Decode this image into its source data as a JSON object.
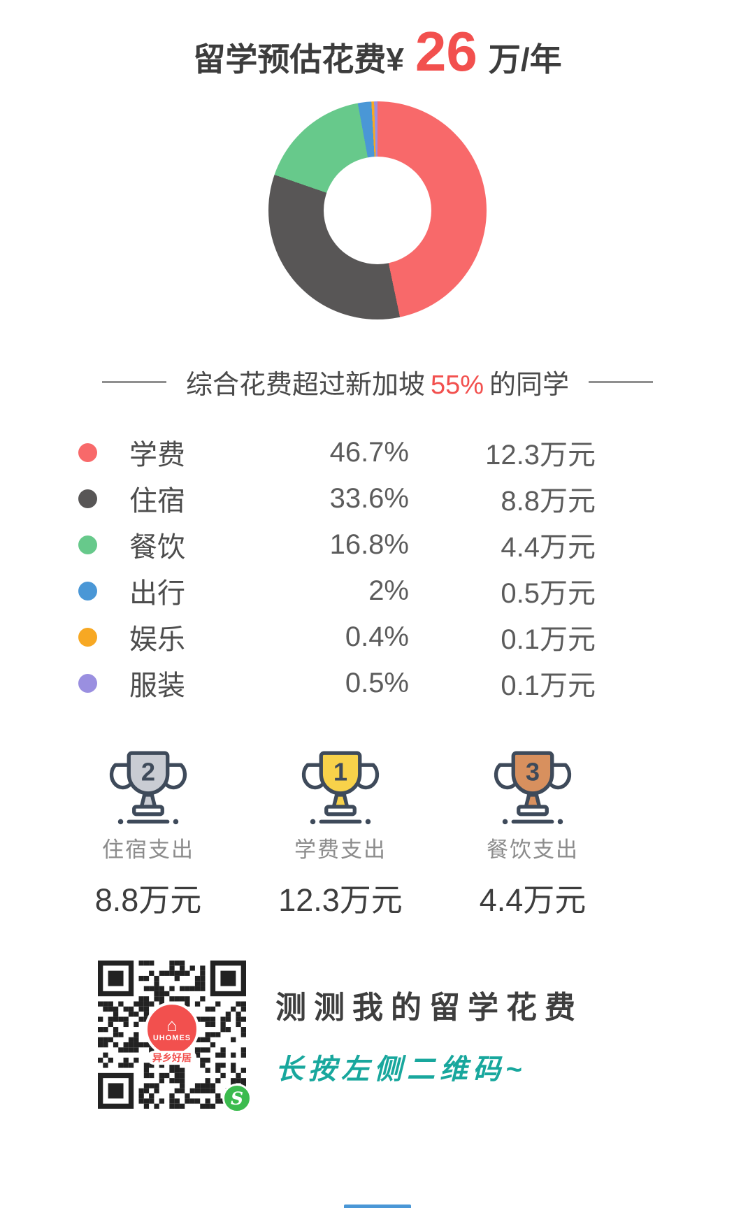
{
  "title": {
    "prefix": "留学预估花费¥",
    "amount": "26",
    "suffix": "万/年"
  },
  "summary": {
    "before": "综合花费超过新加坡",
    "highlight": "55%",
    "after": "的同学"
  },
  "chart_data": {
    "type": "pie",
    "subtype": "donut",
    "title": "留学预估花费 ¥26 万/年",
    "categories": [
      "学费",
      "住宿",
      "餐饮",
      "出行",
      "娱乐",
      "服装"
    ],
    "values": [
      46.7,
      33.6,
      16.8,
      2,
      0.4,
      0.5
    ],
    "amounts_wan_yuan": [
      12.3,
      8.8,
      4.4,
      0.5,
      0.1,
      0.1
    ],
    "unit": "万元",
    "colors": [
      "#f8696a",
      "#585656",
      "#67c98b",
      "#4a97d6",
      "#f7a823",
      "#9a8fe0"
    ],
    "legend_position": "below",
    "start_angle_deg": 0,
    "direction": "clockwise"
  },
  "legend": {
    "items": [
      {
        "label": "学费",
        "percent": "46.7%",
        "amount": "12.3万元",
        "color": "#f8696a"
      },
      {
        "label": "住宿",
        "percent": "33.6%",
        "amount": "8.8万元",
        "color": "#585656"
      },
      {
        "label": "餐饮",
        "percent": "16.8%",
        "amount": "4.4万元",
        "color": "#67c98b"
      },
      {
        "label": "出行",
        "percent": "2%",
        "amount": "0.5万元",
        "color": "#4a97d6"
      },
      {
        "label": "娱乐",
        "percent": "0.4%",
        "amount": "0.1万元",
        "color": "#f7a823"
      },
      {
        "label": "服装",
        "percent": "0.5%",
        "amount": "0.1万元",
        "color": "#9a8fe0"
      }
    ]
  },
  "rankings": [
    {
      "rank": "2",
      "medal": "silver",
      "label": "住宿支出",
      "amount": "8.8万元"
    },
    {
      "rank": "1",
      "medal": "gold",
      "label": "学费支出",
      "amount": "12.3万元"
    },
    {
      "rank": "3",
      "medal": "bronze",
      "label": "餐饮支出",
      "amount": "4.4万元"
    }
  ],
  "medal_colors": {
    "gold": "#f8d24a",
    "silver": "#c9ccd3",
    "bronze": "#d8905e",
    "outline": "#3e4a5a"
  },
  "footer": {
    "headline": "测测我的留学花费",
    "subline": "长按左侧二维码~",
    "qr_center_top": "UHOMES",
    "qr_center_bottom": "异乡好居",
    "badge_letter": "S",
    "accent_red": "#f2504e",
    "accent_teal": "#18a79d"
  }
}
